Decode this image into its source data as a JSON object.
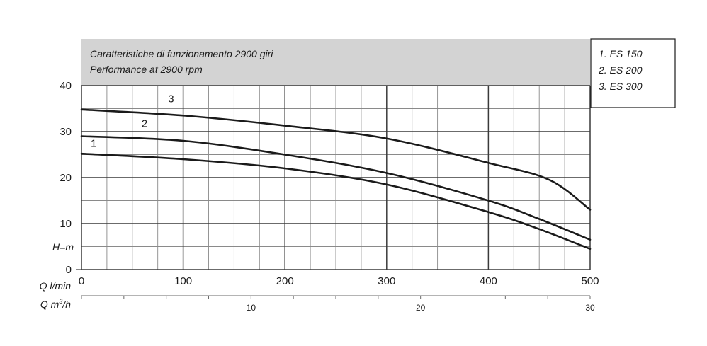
{
  "header": {
    "line1": "Caratteristiche di funzionamento 2900 giri",
    "line2": "Performance at 2900 rpm"
  },
  "legend": {
    "items": [
      "1. ES 150",
      "2. ES 200",
      "3. ES 300"
    ]
  },
  "colors": {
    "header_bg": "#d3d3d3",
    "curve": "#1a1a1a",
    "grid_major": "#3a3a3a",
    "grid_minor": "#8a8a8a"
  },
  "chart_data": {
    "type": "line",
    "ylabel": "H=m",
    "xlabel": "Q l/min",
    "x2label_main": "Q m",
    "x2label_sup": "3",
    "x2label_tail": "/h",
    "xlim": [
      0,
      500
    ],
    "ylim": [
      0,
      40
    ],
    "x_ticks": [
      0,
      100,
      200,
      300,
      400,
      500
    ],
    "y_ticks": [
      0,
      10,
      20,
      30,
      40
    ],
    "x2_ticks": [
      10,
      20,
      30
    ],
    "x2_ratio": 16.6667,
    "series": [
      {
        "name": "1",
        "x": [
          0,
          100,
          200,
          300,
          400,
          450,
          500
        ],
        "y": [
          25.2,
          24.0,
          22.0,
          18.5,
          12.5,
          8.8,
          4.5
        ]
      },
      {
        "name": "2",
        "x": [
          0,
          100,
          200,
          300,
          400,
          450,
          500
        ],
        "y": [
          29.0,
          28.0,
          25.0,
          21.0,
          15.0,
          11.0,
          6.5
        ]
      },
      {
        "name": "3",
        "x": [
          0,
          100,
          200,
          300,
          400,
          460,
          500
        ],
        "y": [
          34.8,
          33.5,
          31.3,
          28.5,
          23.2,
          19.5,
          13.0
        ]
      }
    ],
    "series_labels": [
      {
        "text": "1",
        "x": 12,
        "y": 26.7
      },
      {
        "text": "2",
        "x": 62,
        "y": 31.0
      },
      {
        "text": "3",
        "x": 88,
        "y": 36.4
      }
    ]
  }
}
